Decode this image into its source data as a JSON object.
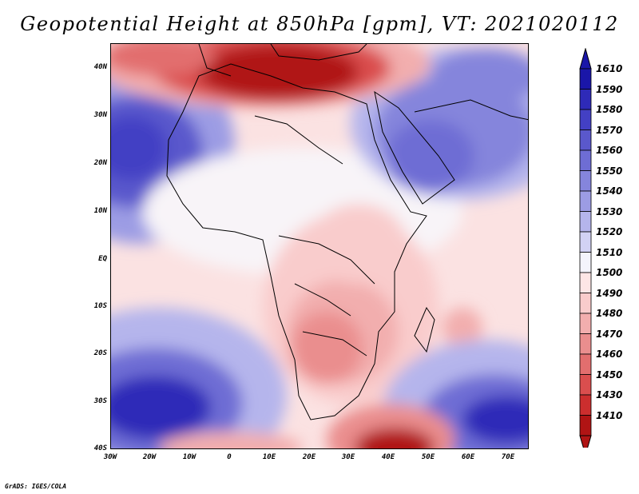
{
  "title": "Geopotential Height at 850hPa [gpm], VT: 2021020112",
  "y_axis_labels": [
    "40N",
    "30N",
    "20N",
    "10N",
    "EQ",
    "10S",
    "20S",
    "30S",
    "40S"
  ],
  "x_axis_labels": [
    "30W",
    "20W",
    "10W",
    "0",
    "10E",
    "20E",
    "30E",
    "40E",
    "50E",
    "60E",
    "70E"
  ],
  "colorbar": {
    "labels": [
      "1610",
      "1590",
      "1580",
      "1570",
      "1560",
      "1550",
      "1540",
      "1530",
      "1520",
      "1510",
      "1500",
      "1490",
      "1480",
      "1470",
      "1460",
      "1450",
      "1430",
      "1410"
    ],
    "colors": [
      "#1a16a8",
      "#2e2ab8",
      "#4340c4",
      "#5a58cc",
      "#6e6dd4",
      "#8585dc",
      "#9c9ce4",
      "#b5b5ec",
      "#d2d2f4",
      "#f4f4fc",
      "#fde6e6",
      "#f9cccc",
      "#f2aeae",
      "#ea8e8e",
      "#e26e6e",
      "#da4e4e",
      "#cc2e2e",
      "#b01414"
    ]
  },
  "credit": "GrADS: IGES/COLA"
}
